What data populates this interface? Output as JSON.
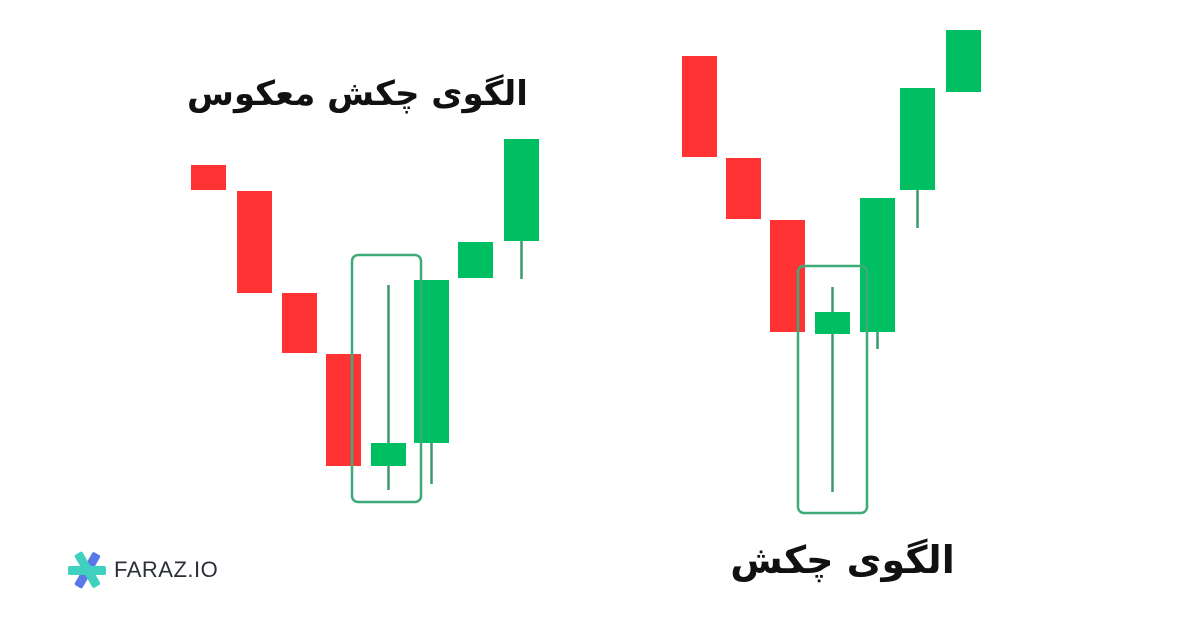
{
  "titles": {
    "inverted_hammer": "الگوی چکش معکوس",
    "hammer": "الگوی چکش"
  },
  "logo": {
    "text": "FARAZ.IO",
    "icon": "asterisk-logo-icon"
  },
  "colors": {
    "bearish": "#FF3333",
    "bullish": "#00BF63",
    "highlight_box": "#3DAA78",
    "wick": "#3D9A6E",
    "logo_teal": "#3FD0C0",
    "logo_blue": "#5A78E8"
  },
  "patterns": [
    {
      "name": "inverted_hammer",
      "candles": [
        "bearish",
        "bearish",
        "bearish",
        "bearish",
        "bullish",
        "bullish",
        "bullish",
        "bullish"
      ],
      "highlighted_candle": 5
    },
    {
      "name": "hammer",
      "candles": [
        "bearish",
        "bearish",
        "bearish",
        "bullish",
        "bullish",
        "bullish",
        "bullish"
      ],
      "highlighted_candle": 4
    }
  ]
}
